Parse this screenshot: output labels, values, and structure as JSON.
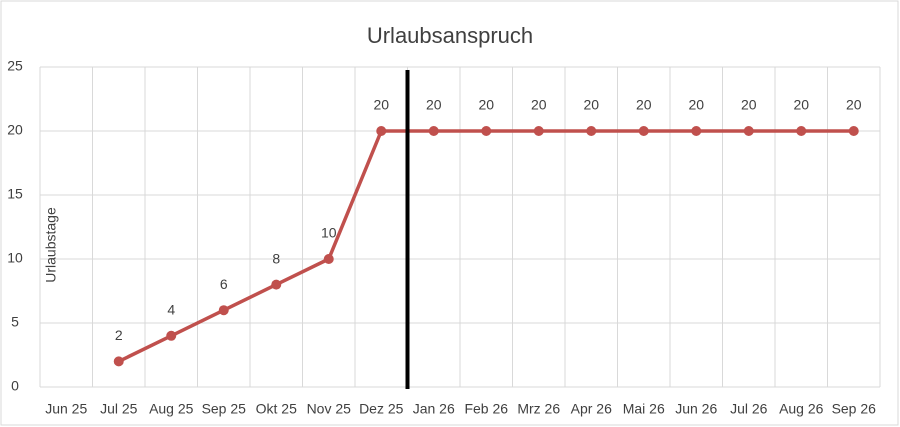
{
  "chart_data": {
    "type": "line",
    "title": "Urlaubsanspruch",
    "y_label": "Urlaubstage",
    "categories": [
      "Jun 25",
      "Jul 25",
      "Aug 25",
      "Sep 25",
      "Okt 25",
      "Nov 25",
      "Dez 25",
      "Jan 26",
      "Feb 26",
      "Mrz 26",
      "Apr 26",
      "Mai 26",
      "Jun 26",
      "Jul 26",
      "Aug 26",
      "Sep 26"
    ],
    "series": [
      {
        "name": "Urlaubsanspruch",
        "color": "#c0504d",
        "values": [
          null,
          2,
          4,
          6,
          8,
          10,
          20,
          20,
          20,
          20,
          20,
          20,
          20,
          20,
          20,
          20
        ]
      }
    ],
    "ylim": [
      0,
      25
    ],
    "yticks": [
      0,
      5,
      10,
      15,
      20,
      25
    ],
    "grid": true
  }
}
